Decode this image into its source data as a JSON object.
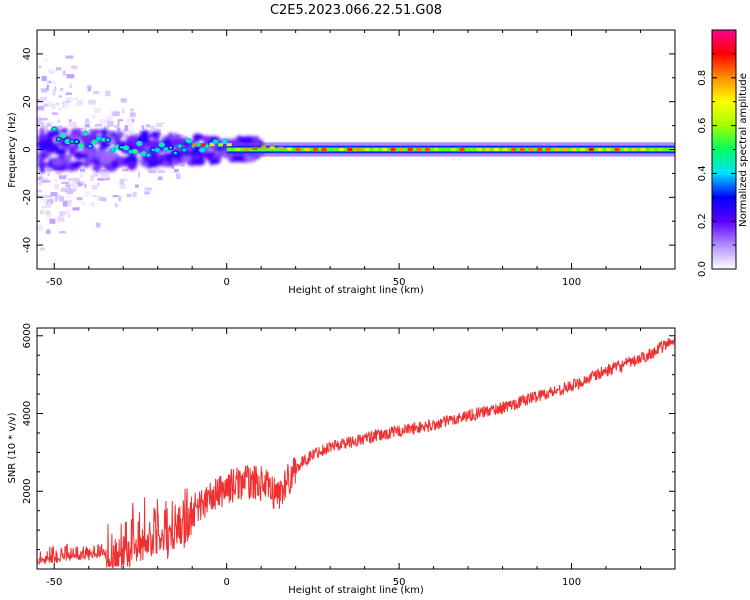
{
  "title": "C2E5.2023.066.22.51.G08",
  "chart_data": [
    {
      "type": "heatmap",
      "xlabel": "Height of straight line (km)",
      "ylabel": "Frequency (Hz)",
      "xlim": [
        -55,
        130
      ],
      "ylim": [
        -50,
        50
      ],
      "xticks": [
        -50,
        0,
        50,
        100
      ],
      "yticks": [
        -40,
        -20,
        0,
        20,
        40
      ],
      "colorbar": {
        "label": "Normalized spectral amplitude",
        "range": [
          0.0,
          1.0
        ],
        "ticks": [
          0.0,
          0.2,
          0.4,
          0.6,
          0.8
        ],
        "tick_labels": [
          "0.0",
          "0.2",
          "0.4",
          "0.6",
          "0.8"
        ],
        "colors": [
          "#ffffff",
          "#b48cff",
          "#5a00ff",
          "#0000ff",
          "#00e0ff",
          "#00ff60",
          "#a0ff00",
          "#ffff00",
          "#ff9000",
          "#ff0000",
          "#ff0090"
        ]
      },
      "ridge": [
        {
          "x": -50,
          "y": 6
        },
        {
          "x": -40,
          "y": 4
        },
        {
          "x": -30,
          "y": 0
        },
        {
          "x": -25,
          "y": 0
        },
        {
          "x": -20,
          "y": -1
        },
        {
          "x": -15,
          "y": 0
        },
        {
          "x": -10,
          "y": 2
        },
        {
          "x": 0,
          "y": 2
        },
        {
          "x": 0,
          "y": 0
        },
        {
          "x": 5,
          "y": 0
        },
        {
          "x": 10,
          "y": 1
        },
        {
          "x": 20,
          "y": 0
        },
        {
          "x": 130,
          "y": 0
        }
      ]
    },
    {
      "type": "line",
      "xlabel": "Height of straight line (km)",
      "ylabel": "SNR (10 * v/v)",
      "xlim": [
        -55,
        130
      ],
      "ylim": [
        0,
        6200
      ],
      "xticks": [
        -50,
        0,
        50,
        100
      ],
      "yticks": [
        2000,
        4000,
        6000
      ],
      "color": "#f03030",
      "series": [
        {
          "x": [
            -55,
            -45,
            -35,
            -25,
            -20,
            -15,
            -10,
            -5,
            0,
            5,
            10,
            15,
            20,
            25,
            30,
            40,
            50,
            60,
            70,
            80,
            90,
            100,
            110,
            120,
            130
          ],
          "y": [
            300,
            400,
            500,
            900,
            1100,
            1200,
            1500,
            1800,
            2100,
            2250,
            2200,
            1900,
            2600,
            2950,
            3150,
            3350,
            3550,
            3700,
            3950,
            4150,
            4450,
            4700,
            5100,
            5400,
            5900
          ]
        }
      ]
    }
  ]
}
